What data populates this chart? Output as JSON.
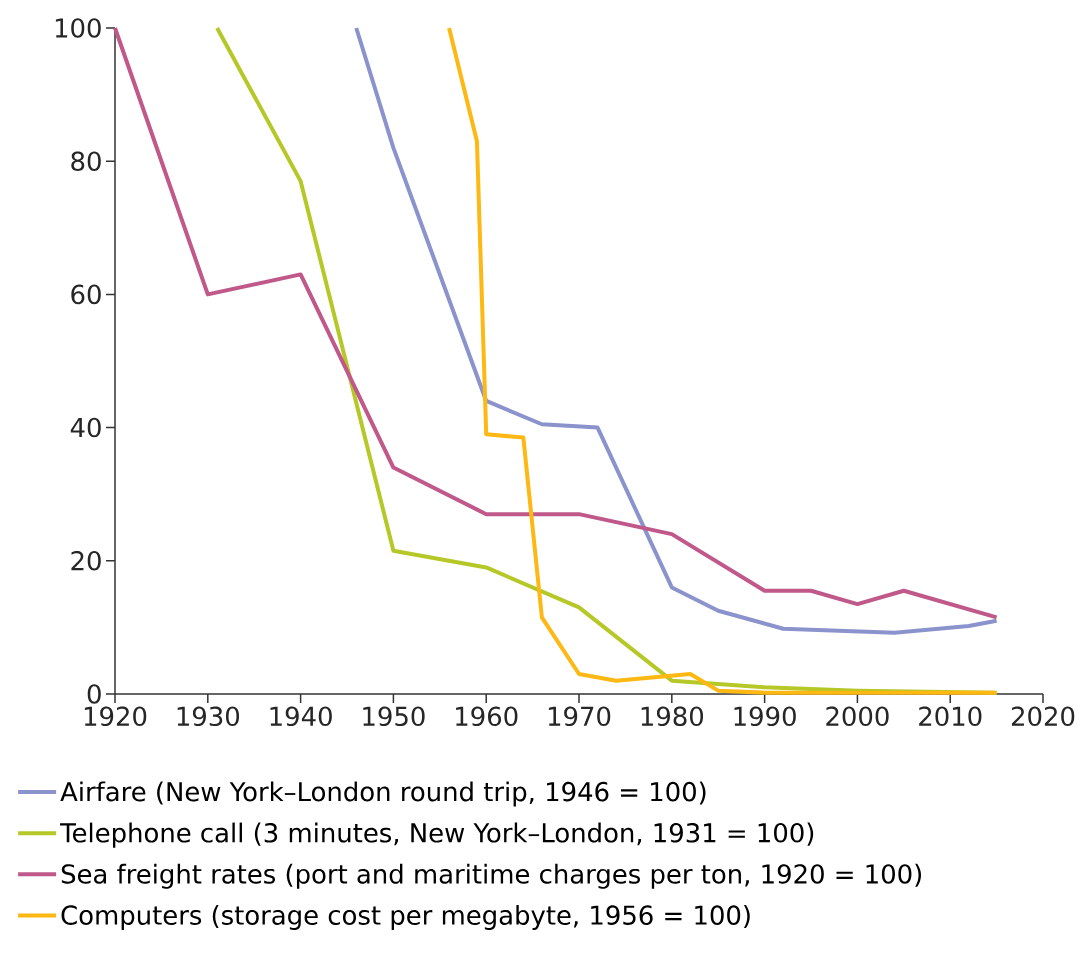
{
  "chart_data": {
    "type": "line",
    "xlim": [
      1920,
      2020
    ],
    "ylim": [
      0,
      100
    ],
    "xticks": [
      1920,
      1930,
      1940,
      1950,
      1960,
      1970,
      1980,
      1990,
      2000,
      2010,
      2020
    ],
    "yticks": [
      0,
      20,
      40,
      60,
      80,
      100
    ],
    "grid": false,
    "legend": "bottom",
    "line_style": "solid",
    "marker": "none",
    "series": [
      {
        "name": "Airfare (New York–London round trip, 1946 = 100)",
        "color": "#8b93cc",
        "x": [
          1946,
          1950,
          1960,
          1966,
          1972,
          1980,
          1985,
          1992,
          2004,
          2012,
          2015
        ],
        "values": [
          100,
          82,
          44,
          40.5,
          40,
          16,
          12.5,
          9.8,
          9.2,
          10.2,
          11
        ]
      },
      {
        "name": "Telephone call (3 minutes, New York–London, 1931 = 100)",
        "color": "#b5c827",
        "x": [
          1931,
          1940,
          1950,
          1960,
          1970,
          1980,
          1990,
          2000,
          2015
        ],
        "values": [
          100,
          77,
          21.5,
          19,
          13,
          2,
          1,
          0.5,
          0.2
        ]
      },
      {
        "name": "Sea freight rates (port and maritime charges per ton, 1920 = 100)",
        "color": "#c0588a",
        "x": [
          1920,
          1930,
          1940,
          1950,
          1960,
          1970,
          1980,
          1990,
          1995,
          2000,
          2005,
          2015
        ],
        "values": [
          100,
          60,
          63,
          34,
          27,
          27,
          24,
          15.5,
          15.5,
          13.5,
          15.5,
          11.5
        ]
      },
      {
        "name": "Computers (storage cost per megabyte, 1956 = 100)",
        "color": "#fdb813",
        "x": [
          1956,
          1959,
          1960,
          1964,
          1966,
          1970,
          1974,
          1982,
          1985,
          1990,
          2015
        ],
        "values": [
          100,
          83,
          39,
          38.5,
          11.5,
          3,
          2,
          3,
          0.5,
          0.2,
          0.2
        ]
      }
    ]
  }
}
